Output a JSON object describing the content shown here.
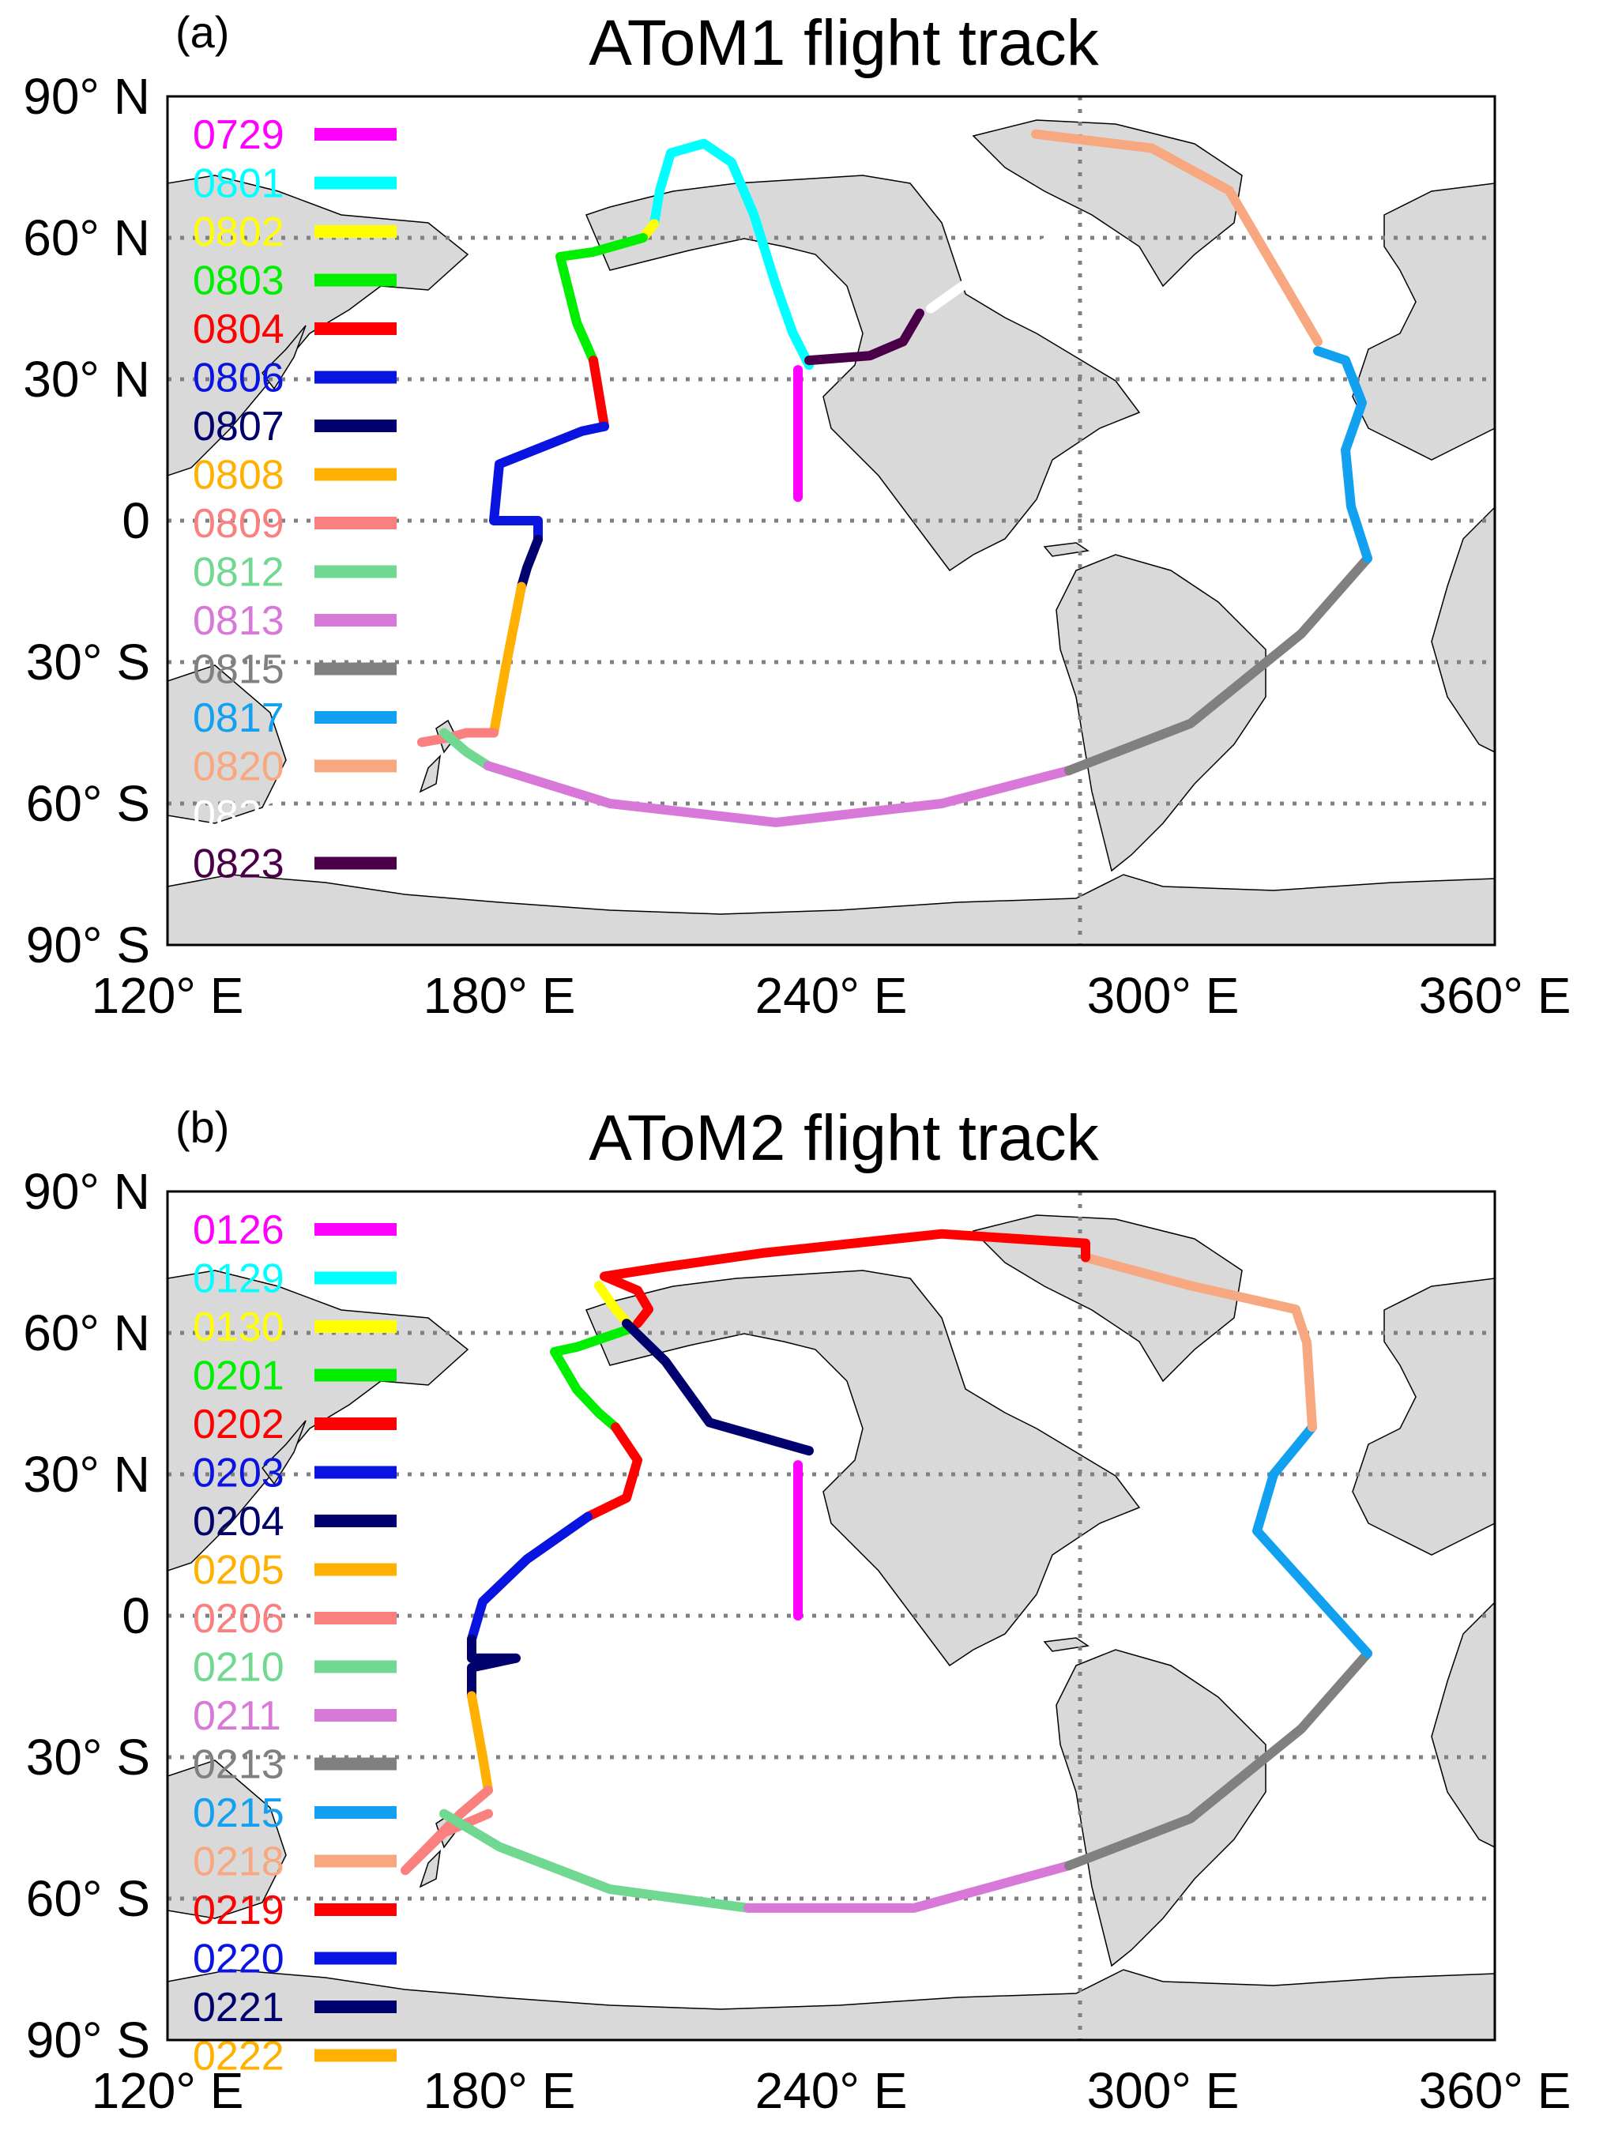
{
  "panels": [
    {
      "letter": "(a)",
      "title": "AToM1 flight track",
      "legend": [
        {
          "label": "0729",
          "color": "#ff00ff"
        },
        {
          "label": "0801",
          "color": "#00ffff"
        },
        {
          "label": "0802",
          "color": "#ffff00"
        },
        {
          "label": "0803",
          "color": "#00ee00"
        },
        {
          "label": "0804",
          "color": "#ff0000"
        },
        {
          "label": "0806",
          "color": "#0a14e0"
        },
        {
          "label": "0807",
          "color": "#00006e"
        },
        {
          "label": "0808",
          "color": "#ffb000"
        },
        {
          "label": "0809",
          "color": "#fa8080"
        },
        {
          "label": "0812",
          "color": "#70d890"
        },
        {
          "label": "0813",
          "color": "#d878d8"
        },
        {
          "label": "0815",
          "color": "#808080"
        },
        {
          "label": "0817",
          "color": "#12a0f0"
        },
        {
          "label": "0820",
          "color": "#f8a880"
        },
        {
          "label": "0822",
          "color": "#ffffff"
        },
        {
          "label": "0823",
          "color": "#4a0048"
        }
      ],
      "tracks": [
        {
          "color": "#ff00ff",
          "points": [
            [
              234,
              5
            ],
            [
              234,
              32
            ]
          ]
        },
        {
          "color": "#00ffff",
          "points": [
            [
              236,
              33
            ],
            [
              233,
              40
            ],
            [
              230,
              50
            ],
            [
              226,
              65
            ],
            [
              222,
              76
            ],
            [
              217,
              80
            ],
            [
              211,
              78
            ],
            [
              209,
              70
            ],
            [
              208,
              63
            ]
          ]
        },
        {
          "color": "#ffff00",
          "points": [
            [
              208,
              63
            ],
            [
              206,
              60
            ]
          ]
        },
        {
          "color": "#00ee00",
          "points": [
            [
              206,
              60
            ],
            [
              197,
              57
            ],
            [
              191,
              56
            ],
            [
              194,
              42
            ],
            [
              197,
              34
            ]
          ]
        },
        {
          "color": "#ff0000",
          "points": [
            [
              197,
              34
            ],
            [
              198,
              27
            ],
            [
              199,
              20
            ]
          ]
        },
        {
          "color": "#0a14e0",
          "points": [
            [
              199,
              20
            ],
            [
              195,
              19
            ],
            [
              180,
              12
            ],
            [
              179,
              0
            ],
            [
              187,
              0
            ],
            [
              187,
              -4
            ]
          ]
        },
        {
          "color": "#00006e",
          "points": [
            [
              187,
              -4
            ],
            [
              185,
              -10
            ],
            [
              184,
              -14
            ]
          ]
        },
        {
          "color": "#ffb000",
          "points": [
            [
              184,
              -14
            ],
            [
              181,
              -32
            ],
            [
              179,
              -45
            ]
          ]
        },
        {
          "color": "#fa8080",
          "points": [
            [
              179,
              -45
            ],
            [
              174,
              -45
            ],
            [
              171,
              -46
            ],
            [
              166,
              -47
            ]
          ]
        },
        {
          "color": "#70d890",
          "points": [
            [
              170,
              -45
            ],
            [
              174,
              -49
            ],
            [
              178,
              -52
            ]
          ]
        },
        {
          "color": "#d878d8",
          "points": [
            [
              178,
              -52
            ],
            [
              200,
              -60
            ],
            [
              230,
              -64
            ],
            [
              260,
              -60
            ],
            [
              283,
              -53
            ]
          ]
        },
        {
          "color": "#808080",
          "points": [
            [
              283,
              -53
            ],
            [
              305,
              -43
            ],
            [
              325,
              -24
            ],
            [
              337,
              -8
            ]
          ]
        },
        {
          "color": "#12a0f0",
          "points": [
            [
              337,
              -8
            ],
            [
              334,
              3
            ],
            [
              333,
              15
            ],
            [
              336,
              25
            ],
            [
              333,
              34
            ],
            [
              328,
              36
            ]
          ]
        },
        {
          "color": "#f8a880",
          "points": [
            [
              328,
              38
            ],
            [
              322,
              50
            ],
            [
              312,
              70
            ],
            [
              298,
              79
            ],
            [
              277,
              82
            ]
          ]
        },
        {
          "color": "#ffffff",
          "points": [
            [
              258,
              45
            ],
            [
              270,
              55
            ],
            [
              281,
              60
            ]
          ]
        },
        {
          "color": "#4a0048",
          "points": [
            [
              236,
              34
            ],
            [
              247,
              35
            ],
            [
              253,
              38
            ],
            [
              256,
              44
            ]
          ]
        }
      ]
    },
    {
      "letter": "(b)",
      "title": "AToM2 flight track",
      "legend": [
        {
          "label": "0126",
          "color": "#ff00ff"
        },
        {
          "label": "0129",
          "color": "#00ffff"
        },
        {
          "label": "0130",
          "color": "#ffff00"
        },
        {
          "label": "0201",
          "color": "#00ee00"
        },
        {
          "label": "0202",
          "color": "#ff0000"
        },
        {
          "label": "0203",
          "color": "#0a14e0"
        },
        {
          "label": "0204",
          "color": "#00006e"
        },
        {
          "label": "0205",
          "color": "#ffb000"
        },
        {
          "label": "0206",
          "color": "#fa8080"
        },
        {
          "label": "0210",
          "color": "#70d890"
        },
        {
          "label": "0211",
          "color": "#d878d8"
        },
        {
          "label": "0213",
          "color": "#808080"
        },
        {
          "label": "0215",
          "color": "#12a0f0"
        },
        {
          "label": "0218",
          "color": "#f8a880"
        },
        {
          "label": "0219",
          "color": "#ff0000"
        },
        {
          "label": "0220",
          "color": "#0a14e0"
        },
        {
          "label": "0221",
          "color": "#00006e"
        },
        {
          "label": "0222",
          "color": "#ffb000"
        }
      ],
      "tracks": [
        {
          "color": "#ff00ff",
          "points": [
            [
              234,
              0
            ],
            [
              234,
              32
            ]
          ]
        },
        {
          "color": "#ffff00",
          "points": [
            [
              198,
              70
            ],
            [
              201,
              65
            ],
            [
              204,
              61
            ]
          ]
        },
        {
          "color": "#00ee00",
          "points": [
            [
              204,
              61
            ],
            [
              194,
              57
            ],
            [
              190,
              56
            ],
            [
              194,
              48
            ],
            [
              198,
              43
            ],
            [
              201,
              40
            ]
          ]
        },
        {
          "color": "#ff0000",
          "points": [
            [
              201,
              40
            ],
            [
              205,
              33
            ],
            [
              203,
              25
            ],
            [
              196,
              21
            ]
          ]
        },
        {
          "color": "#0a14e0",
          "points": [
            [
              196,
              21
            ],
            [
              185,
              12
            ],
            [
              177,
              3
            ],
            [
              175,
              -5
            ]
          ]
        },
        {
          "color": "#00006e",
          "points": [
            [
              175,
              -5
            ],
            [
              175,
              -9
            ],
            [
              183,
              -9
            ],
            [
              175,
              -11
            ],
            [
              175,
              -17
            ]
          ]
        },
        {
          "color": "#ffb000",
          "points": [
            [
              175,
              -17
            ],
            [
              177,
              -30
            ],
            [
              178,
              -37
            ]
          ]
        },
        {
          "color": "#fa8080",
          "points": [
            [
              178,
              -37
            ],
            [
              173,
              -42
            ],
            [
              163,
              -54
            ],
            [
              170,
              -46
            ],
            [
              178,
              -42
            ]
          ]
        },
        {
          "color": "#70d890",
          "points": [
            [
              170,
              -42
            ],
            [
              180,
              -49
            ],
            [
              200,
              -58
            ],
            [
              225,
              -62
            ]
          ]
        },
        {
          "color": "#d878d8",
          "points": [
            [
              225,
              -62
            ],
            [
              255,
              -62
            ],
            [
              283,
              -53
            ]
          ]
        },
        {
          "color": "#808080",
          "points": [
            [
              283,
              -53
            ],
            [
              305,
              -43
            ],
            [
              325,
              -24
            ],
            [
              337,
              -8
            ]
          ]
        },
        {
          "color": "#12a0f0",
          "points": [
            [
              337,
              -8
            ],
            [
              327,
              5
            ],
            [
              317,
              18
            ],
            [
              320,
              30
            ],
            [
              327,
              40
            ]
          ]
        },
        {
          "color": "#f8a880",
          "points": [
            [
              327,
              40
            ],
            [
              326,
              58
            ],
            [
              324,
              65
            ],
            [
              305,
              70
            ],
            [
              286,
              76
            ]
          ]
        },
        {
          "color": "#ff0000",
          "points": [
            [
              286,
              76
            ],
            [
              286,
              79
            ],
            [
              260,
              81
            ],
            [
              228,
              77
            ],
            [
              210,
              74
            ],
            [
              199,
              72
            ],
            [
              205,
              69
            ],
            [
              207,
              65
            ],
            [
              205,
              62
            ]
          ]
        },
        {
          "color": "#00006e",
          "points": [
            [
              203,
              62
            ],
            [
              210,
              54
            ],
            [
              218,
              41
            ],
            [
              236,
              35
            ]
          ]
        }
      ]
    }
  ],
  "lon_ticks": [
    "120° E",
    "180° E",
    "240° E",
    "300° E",
    "360° E"
  ],
  "lat_ticks": [
    "90° N",
    "60° N",
    "30° N",
    "0",
    "30° S",
    "60° S",
    "90° S"
  ]
}
